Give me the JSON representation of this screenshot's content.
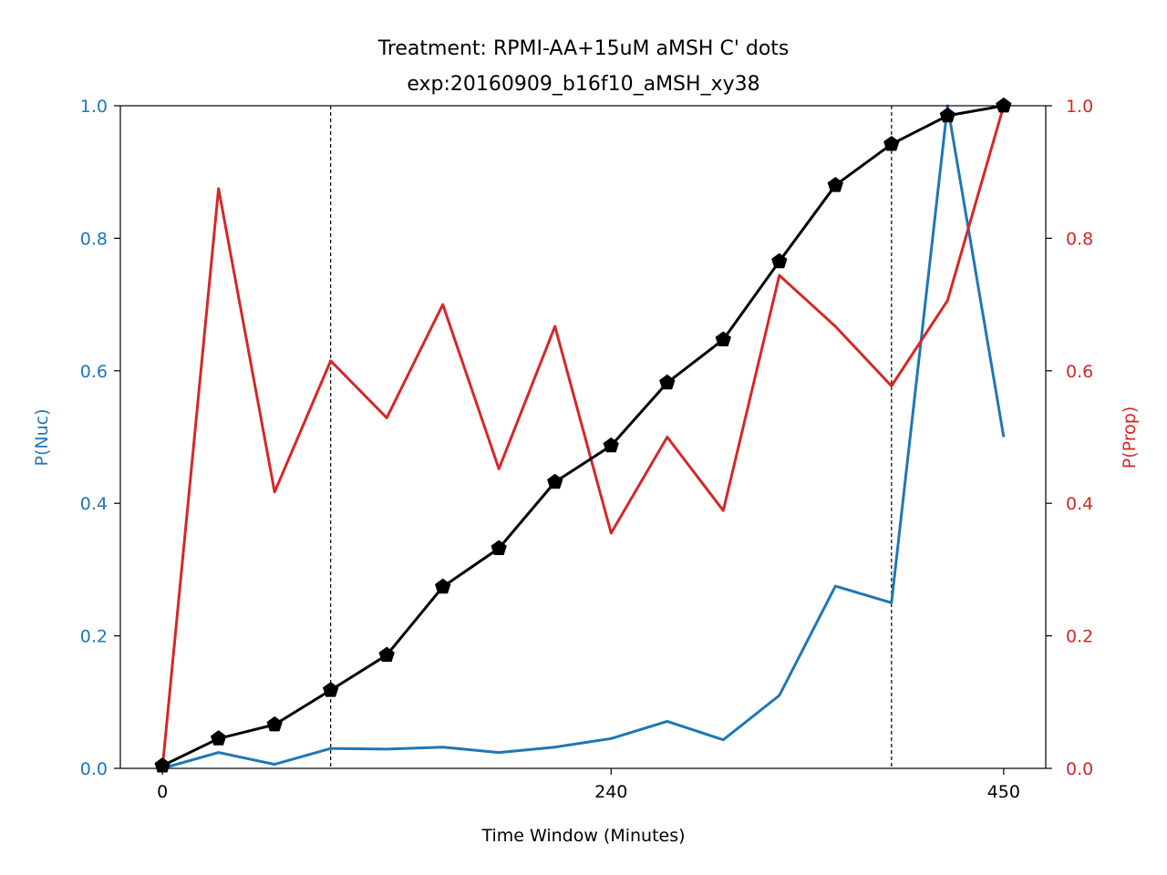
{
  "chart_data": {
    "type": "line",
    "title_line1": "Treatment: RPMI-AA+15uM aMSH C' dots",
    "title_line2": "exp:20160909_b16f10_aMSH_xy38",
    "xlabel": "Time Window (Minutes)",
    "ylabel_left": "P(Nuc)",
    "ylabel_right": "P(Prop)",
    "xlim": [
      -22.5,
      472.5
    ],
    "ylim_left": [
      0,
      1
    ],
    "ylim_right": [
      0,
      1
    ],
    "x_ticks": [
      0,
      240,
      450
    ],
    "x_tick_labels": [
      "0",
      "240",
      "450"
    ],
    "y_ticks": [
      0.0,
      0.2,
      0.4,
      0.6,
      0.8,
      1.0
    ],
    "y_tick_labels": [
      "0.0",
      "0.2",
      "0.4",
      "0.6",
      "0.8",
      "1.0"
    ],
    "vlines": [
      90,
      390
    ],
    "grid": false,
    "colors": {
      "nuc": "#1f77b4",
      "prop": "#d62728",
      "cumulative": "#000000"
    },
    "series": [
      {
        "axis": "left",
        "color": "#1f77b4",
        "x": [
          0,
          30,
          60,
          90,
          120,
          150,
          180,
          210,
          240,
          270,
          300,
          330,
          360,
          390,
          420,
          450
        ],
        "values": [
          0.0,
          0.024,
          0.006,
          0.03,
          0.029,
          0.032,
          0.024,
          0.032,
          0.045,
          0.071,
          0.043,
          0.11,
          0.275,
          0.25,
          1.0,
          0.5
        ]
      },
      {
        "axis": "right",
        "color": "#d62728",
        "x": [
          0,
          30,
          60,
          90,
          120,
          150,
          180,
          210,
          240,
          270,
          300,
          330,
          360,
          390,
          420,
          450
        ],
        "values": [
          0.0,
          0.875,
          0.417,
          0.615,
          0.529,
          0.7,
          0.452,
          0.667,
          0.355,
          0.5,
          0.389,
          0.744,
          0.667,
          0.577,
          0.706,
          1.0
        ]
      },
      {
        "axis": "right",
        "color": "#000000",
        "marker": "pentagon",
        "x": [
          0,
          30,
          60,
          90,
          120,
          150,
          180,
          210,
          240,
          270,
          300,
          330,
          360,
          390,
          420,
          450
        ],
        "values": [
          0.004,
          0.045,
          0.066,
          0.118,
          0.171,
          0.274,
          0.332,
          0.432,
          0.487,
          0.582,
          0.647,
          0.765,
          0.88,
          0.942,
          0.985,
          1.0
        ]
      }
    ]
  }
}
